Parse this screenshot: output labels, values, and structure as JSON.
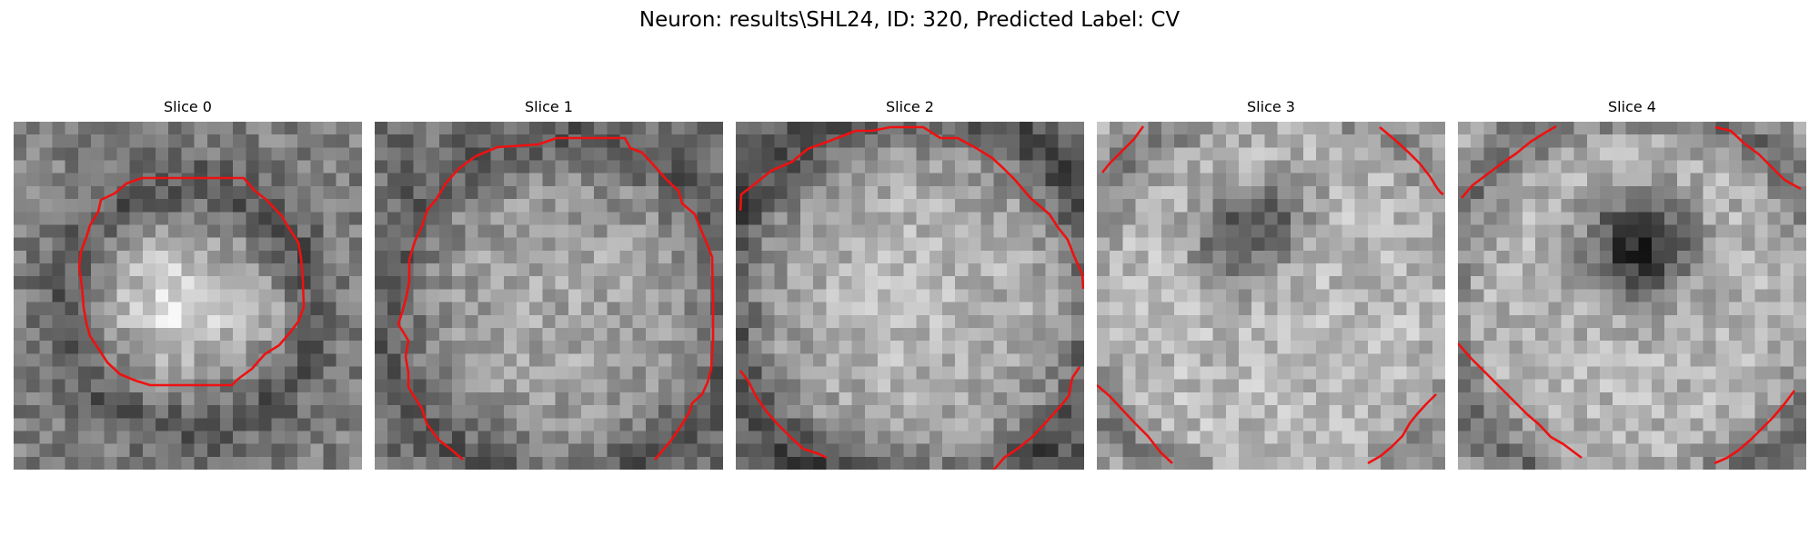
{
  "figure": {
    "suptitle": "Neuron: results\\SHL24, ID: 320, Predicted Label: CV",
    "contour_color": "#ee1111"
  },
  "panels": [
    {
      "title": "Slice 0"
    },
    {
      "title": "Slice 1"
    },
    {
      "title": "Slice 2"
    },
    {
      "title": "Slice 3"
    },
    {
      "title": "Slice 4"
    }
  ]
}
